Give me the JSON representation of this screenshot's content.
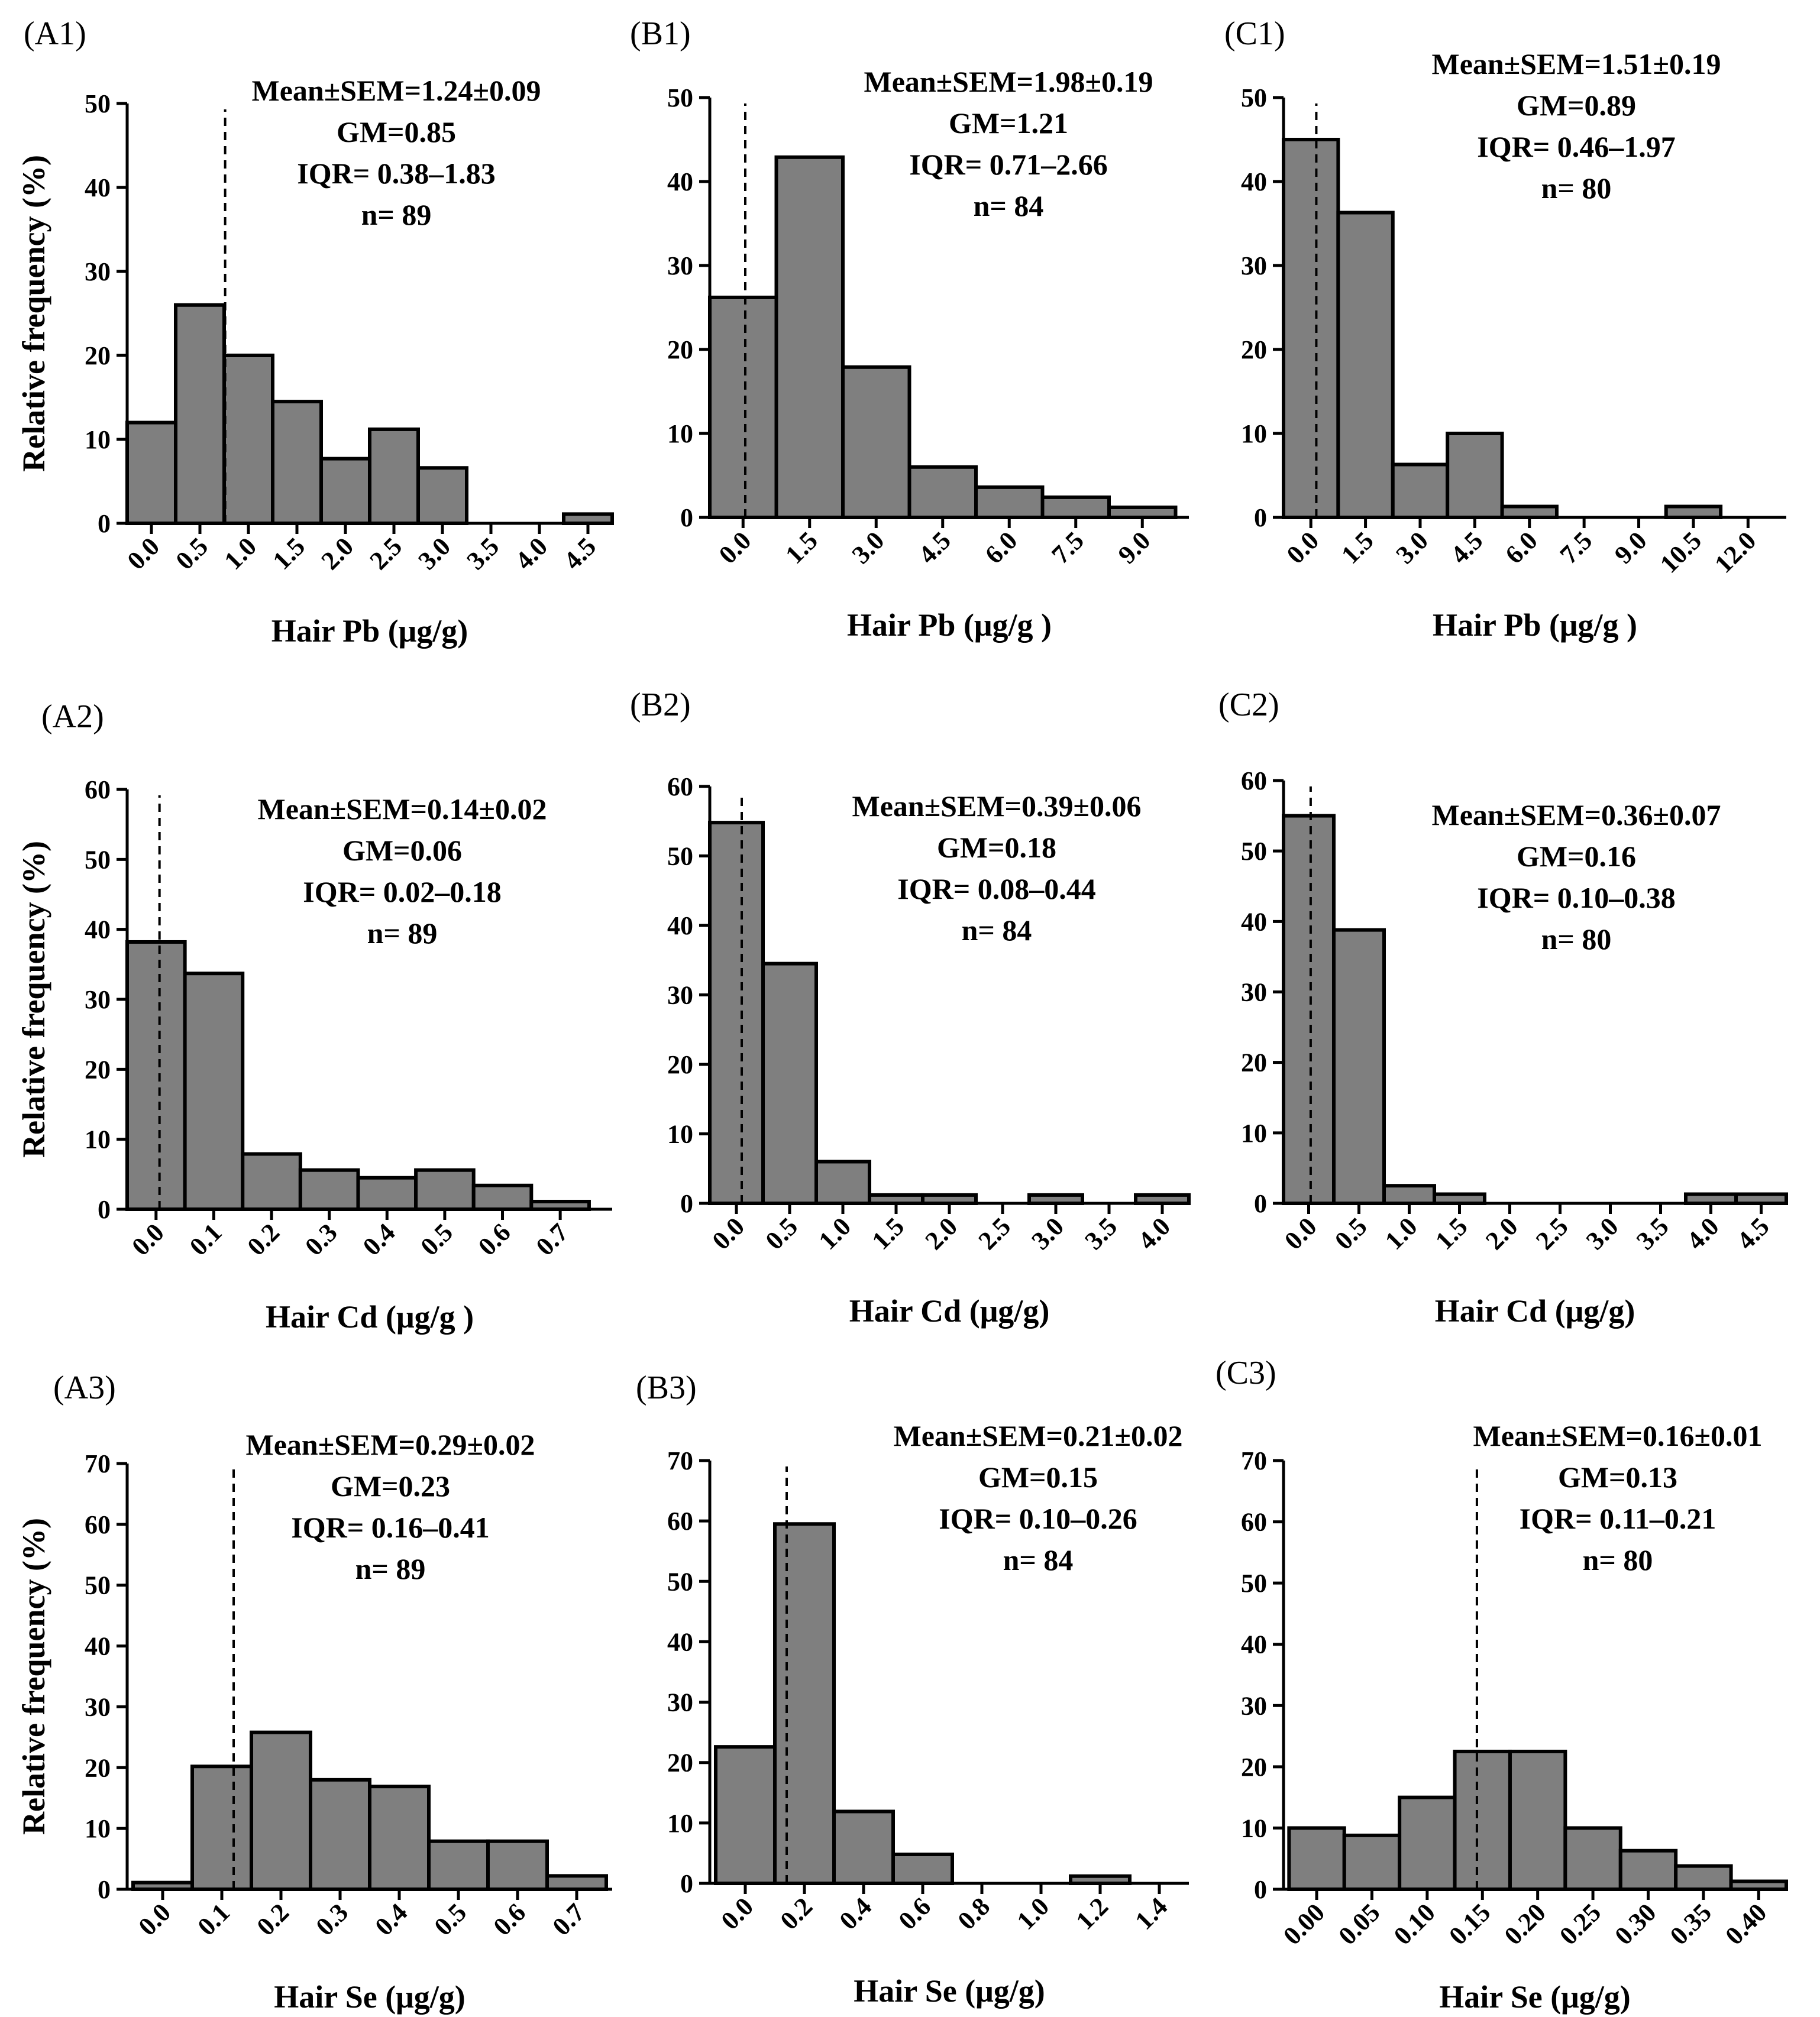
{
  "chart_data": [
    {
      "id": "A1",
      "type": "bar",
      "panel_label": "A1",
      "stats": [
        "Mean±SEM=1.24±0.09",
        "GM=0.85",
        "IQR= 0.38–1.83",
        "n= 89"
      ],
      "xlabel": "Hair Pb (μg/g)",
      "ylabel": "Relative frequency (%)",
      "ylim": [
        0,
        50
      ],
      "yticks": [
        0,
        10,
        20,
        30,
        40,
        50
      ],
      "xlim": [
        -0.25,
        4.75
      ],
      "xticks": [
        "0.0",
        "0.5",
        "1.0",
        "1.5",
        "2.0",
        "2.5",
        "3.0",
        "3.5",
        "4.0",
        "4.5"
      ],
      "xtick_values": [
        0.0,
        0.5,
        1.0,
        1.5,
        2.0,
        2.5,
        3.0,
        3.5,
        4.0,
        4.5
      ],
      "bin_width": 0.5,
      "x": [
        0.0,
        0.5,
        1.0,
        1.5,
        2.0,
        2.5,
        3.0,
        3.5,
        4.0,
        4.5
      ],
      "values": [
        12,
        26,
        20,
        14.5,
        7.7,
        11.2,
        6.6,
        0,
        0,
        1.1
      ],
      "mean_line_x": 0.76
    },
    {
      "id": "B1",
      "type": "bar",
      "panel_label": "B1",
      "stats": [
        "Mean±SEM=1.98±0.19",
        "GM=1.21",
        "IQR= 0.71–2.66",
        "n= 84"
      ],
      "xlabel": "Hair Pb (μg/g )",
      "ylabel": "",
      "ylim": [
        0,
        50
      ],
      "yticks": [
        0,
        10,
        20,
        30,
        40,
        50
      ],
      "xlim": [
        -0.75,
        10.05
      ],
      "xticks": [
        "0.0",
        "1.5",
        "3.0",
        "4.5",
        "6.0",
        "7.5",
        "9.0"
      ],
      "xtick_values": [
        0.0,
        1.5,
        3.0,
        4.5,
        6.0,
        7.5,
        9.0
      ],
      "bin_width": 1.5,
      "x": [
        0.0,
        1.5,
        3.0,
        4.5,
        6.0,
        7.5,
        9.0
      ],
      "values": [
        26.2,
        42.9,
        17.9,
        6,
        3.6,
        2.4,
        1.2
      ],
      "mean_line_x": 0.05
    },
    {
      "id": "C1",
      "type": "bar",
      "panel_label": "C1",
      "stats": [
        "Mean±SEM=1.51±0.19",
        "GM=0.89",
        "IQR= 0.46–1.97",
        "n= 80"
      ],
      "xlabel": "Hair Pb (μg/g )",
      "ylabel": "",
      "ylim": [
        0,
        50
      ],
      "yticks": [
        0,
        10,
        20,
        30,
        40,
        50
      ],
      "xlim": [
        -0.75,
        13.05
      ],
      "xticks": [
        "0.0",
        "1.5",
        "3.0",
        "4.5",
        "6.0",
        "7.5",
        "9.0",
        "10.5",
        "12.0"
      ],
      "xtick_values": [
        0.0,
        1.5,
        3.0,
        4.5,
        6.0,
        7.5,
        9.0,
        10.5,
        12.0
      ],
      "bin_width": 1.5,
      "x": [
        0.0,
        1.5,
        3.0,
        4.5,
        6.0,
        7.5,
        9.0,
        10.5,
        12.0
      ],
      "values": [
        45,
        36.3,
        6.3,
        10,
        1.3,
        0,
        0,
        1.3,
        0
      ],
      "mean_line_x": 0.15
    },
    {
      "id": "A2",
      "type": "bar",
      "panel_label": "A2",
      "stats": [
        "Mean±SEM=0.14±0.02",
        "GM=0.06",
        "IQR= 0.02–0.18",
        "n= 89"
      ],
      "xlabel": "Hair Cd (μg/g )",
      "ylabel": "Relative frequency (%)",
      "ylim": [
        0,
        60
      ],
      "yticks": [
        0,
        10,
        20,
        30,
        40,
        50,
        60
      ],
      "xlim": [
        -0.05,
        0.79
      ],
      "xticks": [
        "0.0",
        "0.1",
        "0.2",
        "0.3",
        "0.4",
        "0.5",
        "0.6",
        "0.7"
      ],
      "xtick_values": [
        0.0,
        0.1,
        0.2,
        0.3,
        0.4,
        0.5,
        0.6,
        0.7
      ],
      "bin_width": 0.1,
      "x": [
        0.0,
        0.1,
        0.2,
        0.3,
        0.4,
        0.5,
        0.6,
        0.7
      ],
      "values": [
        38.2,
        33.7,
        7.9,
        5.6,
        4.5,
        5.6,
        3.4,
        1.1
      ],
      "mean_line_x": 0.006
    },
    {
      "id": "B2",
      "type": "bar",
      "panel_label": "B2",
      "stats": [
        "Mean±SEM=0.39±0.06",
        "GM=0.18",
        "IQR= 0.08–0.44",
        "n= 84"
      ],
      "xlabel": "Hair Cd (μg/g)",
      "ylabel": "",
      "ylim": [
        0,
        60
      ],
      "yticks": [
        0,
        10,
        20,
        30,
        40,
        50,
        60
      ],
      "xlim": [
        -0.25,
        4.25
      ],
      "xticks": [
        "0.0",
        "0.5",
        "1.0",
        "1.5",
        "2.0",
        "2.5",
        "3.0",
        "3.5",
        "4.0"
      ],
      "xtick_values": [
        0.0,
        0.5,
        1.0,
        1.5,
        2.0,
        2.5,
        3.0,
        3.5,
        4.0
      ],
      "bin_width": 0.5,
      "x": [
        0.0,
        0.5,
        1.0,
        1.5,
        2.0,
        2.5,
        3.0,
        3.5,
        4.0
      ],
      "values": [
        54.8,
        34.5,
        6,
        1.2,
        1.2,
        0,
        1.2,
        0,
        1.2
      ],
      "mean_line_x": 0.05
    },
    {
      "id": "C2",
      "type": "bar",
      "panel_label": "C2",
      "stats": [
        "Mean±SEM=0.36±0.07",
        "GM=0.16",
        "IQR= 0.10–0.38",
        "n= 80"
      ],
      "xlabel": "Hair Cd (μg/g)",
      "ylabel": "",
      "ylim": [
        0,
        60
      ],
      "yticks": [
        0,
        10,
        20,
        30,
        40,
        50,
        60
      ],
      "xlim": [
        -0.25,
        4.75
      ],
      "xticks": [
        "0.0",
        "0.5",
        "1.0",
        "1.5",
        "2.0",
        "2.5",
        "3.0",
        "3.5",
        "4.0",
        "4.5"
      ],
      "xtick_values": [
        0.0,
        0.5,
        1.0,
        1.5,
        2.0,
        2.5,
        3.0,
        3.5,
        4.0,
        4.5
      ],
      "bin_width": 0.5,
      "x": [
        0.0,
        0.5,
        1.0,
        1.5,
        2.0,
        2.5,
        3.0,
        3.5,
        4.0,
        4.5
      ],
      "values": [
        55,
        38.8,
        2.5,
        1.3,
        0,
        0,
        0,
        0,
        1.3,
        1.3
      ],
      "mean_line_x": 0.02
    },
    {
      "id": "A3",
      "type": "bar",
      "panel_label": "A3",
      "stats": [
        "Mean±SEM=0.29±0.02",
        "GM=0.23",
        "IQR= 0.16–0.41",
        "n= 89"
      ],
      "xlabel": "Hair Se (μg/g)",
      "ylabel": "Relative frequency (%)",
      "ylim": [
        0,
        70
      ],
      "yticks": [
        0,
        10,
        20,
        30,
        40,
        50,
        60,
        70
      ],
      "xlim": [
        -0.06,
        0.76
      ],
      "xticks": [
        "0.0",
        "0.1",
        "0.2",
        "0.3",
        "0.4",
        "0.5",
        "0.6",
        "0.7"
      ],
      "xtick_values": [
        0.0,
        0.1,
        0.2,
        0.3,
        0.4,
        0.5,
        0.6,
        0.7
      ],
      "bin_width": 0.1,
      "x": [
        0.0,
        0.1,
        0.2,
        0.3,
        0.4,
        0.5,
        0.6,
        0.7
      ],
      "values": [
        1.1,
        20.2,
        25.8,
        18,
        16.9,
        7.9,
        7.9,
        2.2
      ],
      "mean_line_x": 0.12
    },
    {
      "id": "B3",
      "type": "bar",
      "panel_label": "B3",
      "stats": [
        "Mean±SEM=0.21±0.02",
        "GM=0.15",
        "IQR= 0.10–0.26",
        "n= 84"
      ],
      "xlabel": "Hair Se (μg/g)",
      "ylabel": "",
      "ylim": [
        0,
        70
      ],
      "yticks": [
        0,
        10,
        20,
        30,
        40,
        50,
        60,
        70
      ],
      "xlim": [
        -0.12,
        1.5
      ],
      "xticks": [
        "0.0",
        "0.2",
        "0.4",
        "0.6",
        "0.8",
        "1.0",
        "1.2",
        "1.4"
      ],
      "xtick_values": [
        0.0,
        0.2,
        0.4,
        0.6,
        0.8,
        1.0,
        1.2,
        1.4
      ],
      "bin_width": 0.2,
      "x": [
        0.0,
        0.2,
        0.4,
        0.6,
        0.8,
        1.0,
        1.2
      ],
      "values": [
        22.6,
        59.5,
        11.9,
        4.8,
        0,
        0,
        1.2
      ],
      "mean_line_x": 0.14
    },
    {
      "id": "C3",
      "type": "bar",
      "panel_label": "C3",
      "stats": [
        "Mean±SEM=0.16±0.01",
        "GM=0.13",
        "IQR= 0.11–0.21",
        "n= 80"
      ],
      "xlabel": "Hair Se (μg/g)",
      "ylabel": "",
      "ylim": [
        0,
        70
      ],
      "yticks": [
        0,
        10,
        20,
        30,
        40,
        50,
        60,
        70
      ],
      "xlim": [
        -0.03,
        0.425
      ],
      "xticks": [
        "0.00",
        "0.05",
        "0.10",
        "0.15",
        "0.20",
        "0.25",
        "0.30",
        "0.35",
        "0.40"
      ],
      "xtick_values": [
        0.0,
        0.05,
        0.1,
        0.15,
        0.2,
        0.25,
        0.3,
        0.35,
        0.4
      ],
      "bin_width": 0.05,
      "x": [
        0.0,
        0.05,
        0.1,
        0.15,
        0.2,
        0.25,
        0.3,
        0.35,
        0.4
      ],
      "values": [
        10,
        8.8,
        15,
        22.5,
        22.5,
        10,
        6.3,
        3.8,
        1.3
      ],
      "mean_line_x": 0.145
    }
  ]
}
